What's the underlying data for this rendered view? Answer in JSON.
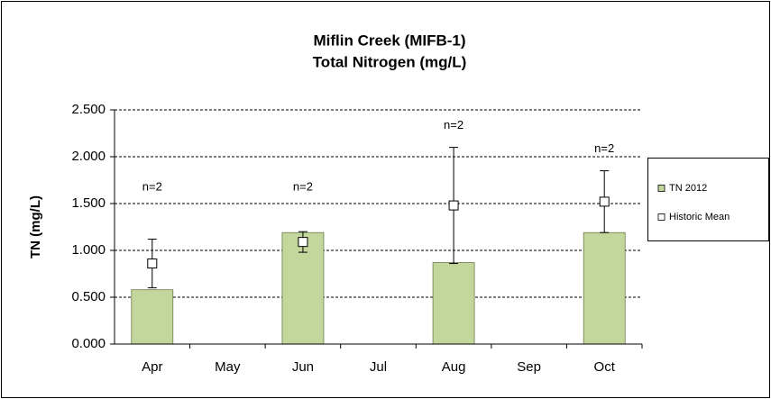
{
  "chart_data": {
    "type": "bar",
    "title": "Miflin Creek (MIFB-1)",
    "subtitle": "Total Nitrogen (mg/L)",
    "y_label": "TN (mg/L)",
    "categories": [
      "Apr",
      "May",
      "Jun",
      "Jul",
      "Aug",
      "Sep",
      "Oct"
    ],
    "series": [
      {
        "name": "TN 2012",
        "color": "#c3d69b",
        "values": [
          0.58,
          null,
          1.19,
          null,
          0.87,
          null,
          1.19
        ]
      },
      {
        "name": "Historic Mean",
        "color": "#ffffff",
        "values": [
          0.86,
          null,
          1.09,
          null,
          1.48,
          null,
          1.52
        ],
        "errors": [
          0.26,
          null,
          0.11,
          null,
          0.62,
          null,
          0.33
        ]
      }
    ],
    "annotations": [
      "n=2",
      null,
      "n=2",
      null,
      "n=2",
      null,
      "n=2"
    ],
    "ylim": [
      0,
      2.5
    ],
    "yticks": [
      {
        "value": 0,
        "label": "0.000"
      },
      {
        "value": 0.5,
        "label": "0.500"
      },
      {
        "value": 1,
        "label": "1.000"
      },
      {
        "value": 1.5,
        "label": "1.500"
      },
      {
        "value": 2,
        "label": "2.000"
      },
      {
        "value": 2.5,
        "label": "2.500"
      }
    ],
    "grid": true,
    "legend": "right"
  }
}
